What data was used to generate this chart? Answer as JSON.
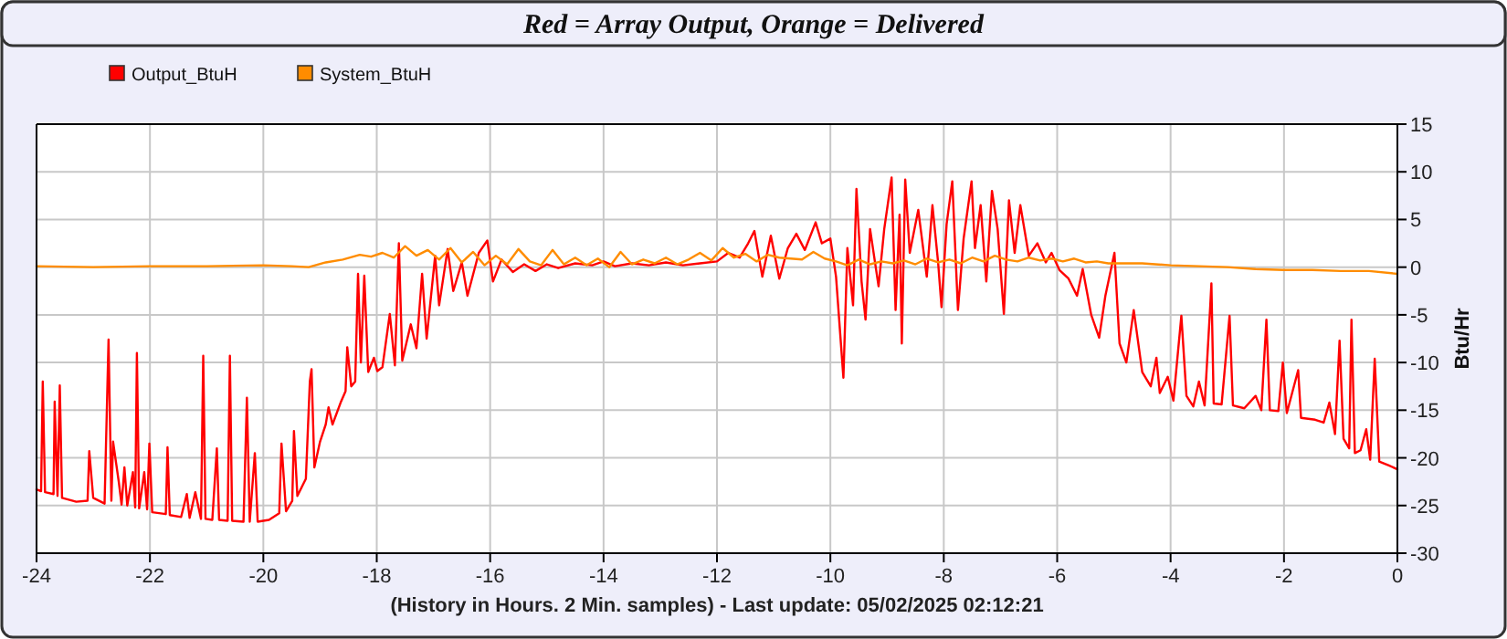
{
  "chart_data": {
    "type": "line",
    "title": "Red = Array Output, Orange = Delivered",
    "xlabel": "(History in Hours. 2 Min. samples) - Last update: 05/02/2025 02:12:21",
    "ylabel": "Btu/Hr",
    "xlim": [
      -24,
      0
    ],
    "xticks": [
      -24,
      -22,
      -20,
      -18,
      -16,
      -14,
      -12,
      -10,
      -8,
      -6,
      -4,
      -2,
      0
    ],
    "ylim": [
      -30,
      15
    ],
    "yticks": [
      -30,
      -25,
      -20,
      -15,
      -10,
      -5,
      0,
      5,
      10,
      15
    ],
    "grid": true,
    "legend": "top left",
    "marker": "none",
    "line_style": "solid",
    "series": [
      {
        "name": "Output_BtuH",
        "color": "#ff0000",
        "x": [
          -24,
          -23.92,
          -23.89,
          -23.85,
          -23.7,
          -23.68,
          -23.63,
          -23.59,
          -23.55,
          -23.3,
          -23.1,
          -23.07,
          -23.0,
          -22.8,
          -22.73,
          -22.68,
          -22.65,
          -22.55,
          -22.5,
          -22.45,
          -22.4,
          -22.3,
          -22.26,
          -22.23,
          -22.19,
          -22.1,
          -22.05,
          -22.01,
          -21.96,
          -21.72,
          -21.69,
          -21.65,
          -21.45,
          -21.35,
          -21.3,
          -21.2,
          -21.1,
          -21.06,
          -21.02,
          -20.9,
          -20.82,
          -20.78,
          -20.63,
          -20.59,
          -20.55,
          -20.35,
          -20.29,
          -20.24,
          -20.15,
          -20.1,
          -19.9,
          -19.72,
          -19.68,
          -19.6,
          -19.49,
          -19.46,
          -19.4,
          -19.25,
          -19.18,
          -19.15,
          -19.1,
          -19.0,
          -18.9,
          -18.85,
          -18.78,
          -18.63,
          -18.55,
          -18.52,
          -18.45,
          -18.38,
          -18.33,
          -18.28,
          -18.22,
          -18.15,
          -18.05,
          -17.99,
          -17.9,
          -17.77,
          -17.68,
          -17.61,
          -17.55,
          -17.4,
          -17.3,
          -17.2,
          -17.12,
          -16.97,
          -16.9,
          -16.75,
          -16.65,
          -16.5,
          -16.4,
          -16.2,
          -16.05,
          -15.95,
          -15.8,
          -15.6,
          -15.4,
          -15.2,
          -15,
          -14.8,
          -14.5,
          -14.2,
          -14,
          -13.8,
          -13.5,
          -13.2,
          -12.9,
          -12.6,
          -12.3,
          -12,
          -11.8,
          -11.6,
          -11.45,
          -11.34,
          -11.2,
          -11.05,
          -10.9,
          -10.75,
          -10.6,
          -10.45,
          -10.26,
          -10.15,
          -10.0,
          -9.9,
          -9.77,
          -9.7,
          -9.6,
          -9.54,
          -9.45,
          -9.38,
          -9.3,
          -9.15,
          -9.05,
          -8.92,
          -8.85,
          -8.78,
          -8.74,
          -8.68,
          -8.6,
          -8.45,
          -8.3,
          -8.2,
          -8.1,
          -8.04,
          -7.95,
          -7.85,
          -7.75,
          -7.65,
          -7.51,
          -7.45,
          -7.35,
          -7.25,
          -7.15,
          -7.05,
          -6.94,
          -6.85,
          -6.75,
          -6.65,
          -6.5,
          -6.35,
          -6.2,
          -6.1,
          -5.96,
          -5.8,
          -5.65,
          -5.55,
          -5.4,
          -5.26,
          -5.15,
          -4.99,
          -4.9,
          -4.78,
          -4.65,
          -4.5,
          -4.35,
          -4.25,
          -4.19,
          -4.05,
          -3.95,
          -3.81,
          -3.72,
          -3.6,
          -3.5,
          -3.4,
          -3.3,
          -3.28,
          -3.24,
          -3.1,
          -2.96,
          -2.9,
          -2.7,
          -2.5,
          -2.4,
          -2.31,
          -2.25,
          -2.1,
          -2.02,
          -1.95,
          -1.75,
          -1.7,
          -1.45,
          -1.3,
          -1.2,
          -1.1,
          -1.02,
          -0.95,
          -0.85,
          -0.81,
          -0.75,
          -0.65,
          -0.55,
          -0.48,
          -0.4,
          -0.32,
          -0.15,
          0
        ],
        "values": [
          -23.3,
          -23.5,
          -12.0,
          -23.6,
          -23.8,
          -14.1,
          -24.0,
          -12.4,
          -24.2,
          -24.6,
          -24.5,
          -19.3,
          -24.2,
          -24.8,
          -7.6,
          -24.5,
          -18.3,
          -22.5,
          -24.9,
          -21.0,
          -25.0,
          -21.5,
          -25.2,
          -9.0,
          -25.3,
          -21.5,
          -25.4,
          -18.5,
          -25.7,
          -25.9,
          -18.9,
          -26.0,
          -26.2,
          -23.8,
          -26.3,
          -23.6,
          -26.4,
          -9.3,
          -26.4,
          -26.5,
          -19.0,
          -26.5,
          -26.6,
          -9.3,
          -26.6,
          -26.7,
          -13.7,
          -26.7,
          -19.5,
          -26.7,
          -26.5,
          -25.8,
          -18.5,
          -25.6,
          -24.5,
          -17.2,
          -24.0,
          -22.2,
          -12.0,
          -10.7,
          -21.0,
          -18.3,
          -16.5,
          -14.7,
          -16.5,
          -14.1,
          -13.0,
          -8.4,
          -12.5,
          -12.0,
          -0.7,
          -10.0,
          -0.9,
          -11.0,
          -9.5,
          -10.9,
          -10.5,
          -4.9,
          -10.3,
          2.5,
          -9.8,
          -6.0,
          -8.5,
          -0.7,
          -7.5,
          1.2,
          -4.0,
          1.9,
          -2.5,
          0.5,
          -3.0,
          1.5,
          2.8,
          -1.5,
          0.8,
          -0.5,
          0.3,
          -0.4,
          0.3,
          -0.1,
          0.4,
          0.2,
          0.6,
          0.1,
          0.4,
          0.2,
          0.5,
          0.2,
          0.4,
          0.6,
          1.5,
          1.0,
          2.5,
          3.8,
          -1.0,
          3.3,
          -1.2,
          2.0,
          3.5,
          1.8,
          4.7,
          2.5,
          3.0,
          -1.0,
          -11.6,
          2.0,
          -4.0,
          8.2,
          -1.5,
          -5.5,
          4.0,
          -2.0,
          4.0,
          9.4,
          -4.5,
          5.5,
          -8.0,
          9.2,
          1.5,
          6.0,
          -1.0,
          6.5,
          0.5,
          -4.2,
          4.5,
          9.0,
          -4.5,
          3.0,
          9.0,
          2.0,
          6.5,
          -1.5,
          8.0,
          4.0,
          -4.9,
          7.0,
          1.5,
          6.5,
          1.2,
          2.5,
          0.5,
          1.5,
          -0.3,
          -1.2,
          -3.0,
          -0.2,
          -5.0,
          -7.4,
          -3.0,
          1.5,
          -8.0,
          -10.0,
          -4.5,
          -11.0,
          -12.5,
          -9.5,
          -13.2,
          -11.5,
          -14.0,
          -5.1,
          -13.5,
          -14.6,
          -12.0,
          -14.5,
          -4.0,
          -1.7,
          -14.3,
          -14.4,
          -5.1,
          -14.5,
          -14.8,
          -13.5,
          -15.0,
          -5.5,
          -15.0,
          -15.1,
          -10.0,
          -15.3,
          -10.8,
          -15.8,
          -16.0,
          -16.3,
          -14.2,
          -17.5,
          -7.7,
          -18.0,
          -19.0,
          -5.5,
          -19.5,
          -19.2,
          -17.0,
          -20.2,
          -9.6,
          -20.4,
          -20.8,
          -21.2
        ]
      },
      {
        "name": "System_BtuH",
        "color": "#ff8c00",
        "x": [
          -24,
          -23,
          -22,
          -21,
          -20,
          -19.5,
          -19.2,
          -18.9,
          -18.6,
          -18.3,
          -18.1,
          -17.9,
          -17.7,
          -17.5,
          -17.3,
          -17.1,
          -16.9,
          -16.7,
          -16.5,
          -16.3,
          -16.1,
          -15.9,
          -15.7,
          -15.5,
          -15.3,
          -15.1,
          -14.9,
          -14.7,
          -14.5,
          -14.3,
          -14.1,
          -13.9,
          -13.7,
          -13.5,
          -13.3,
          -13.1,
          -12.9,
          -12.7,
          -12.5,
          -12.3,
          -12.1,
          -11.9,
          -11.7,
          -11.5,
          -11.3,
          -11.1,
          -10.9,
          -10.7,
          -10.5,
          -10.3,
          -10.1,
          -9.9,
          -9.7,
          -9.5,
          -9.3,
          -9.1,
          -8.9,
          -8.7,
          -8.5,
          -8.3,
          -8.1,
          -7.9,
          -7.7,
          -7.5,
          -7.3,
          -7.1,
          -6.9,
          -6.7,
          -6.5,
          -6.3,
          -6.1,
          -5.9,
          -5.7,
          -5.5,
          -5.3,
          -5.1,
          -4.5,
          -4,
          -3.5,
          -3,
          -2.5,
          -2,
          -1.5,
          -1,
          -0.5,
          0
        ],
        "values": [
          0.1,
          0.0,
          0.1,
          0.1,
          0.2,
          0.1,
          0.0,
          0.5,
          0.8,
          1.3,
          1.1,
          1.5,
          1.0,
          2.2,
          1.2,
          1.8,
          0.8,
          2.0,
          0.5,
          1.6,
          0.2,
          1.2,
          0.3,
          1.9,
          0.6,
          0.2,
          1.8,
          0.3,
          1.0,
          0.2,
          0.9,
          0.0,
          1.6,
          0.3,
          0.8,
          0.4,
          1.0,
          0.3,
          0.8,
          1.5,
          0.7,
          2.0,
          1.0,
          1.4,
          0.6,
          1.3,
          1.0,
          0.9,
          0.8,
          1.6,
          0.9,
          0.6,
          0.2,
          0.8,
          0.3,
          0.6,
          0.4,
          0.7,
          0.3,
          0.9,
          0.5,
          0.8,
          0.4,
          1.0,
          0.6,
          1.2,
          0.8,
          0.6,
          1.0,
          0.7,
          0.9,
          0.6,
          0.9,
          0.5,
          0.6,
          0.4,
          0.4,
          0.2,
          0.1,
          0.0,
          -0.2,
          -0.3,
          -0.3,
          -0.4,
          -0.4,
          -0.7
        ]
      }
    ]
  }
}
